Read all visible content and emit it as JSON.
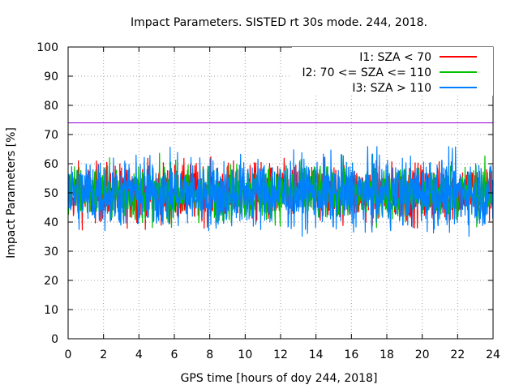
{
  "chart_data": {
    "type": "line",
    "title": "Impact Parameters. SISTED rt 30s mode. 244, 2018.",
    "xlabel": "GPS time [hours of doy 244, 2018]",
    "ylabel": "Impact Parameters [%]",
    "xlim": [
      0,
      24
    ],
    "ylim": [
      0,
      100
    ],
    "xticks": [
      0,
      2,
      4,
      6,
      8,
      10,
      12,
      14,
      16,
      18,
      20,
      22,
      24
    ],
    "yticks": [
      0,
      10,
      20,
      30,
      40,
      50,
      60,
      70,
      80,
      90,
      100
    ],
    "grid": true,
    "legend_position": "top-right",
    "reference_line": {
      "y": 74,
      "color": "#9400d3"
    },
    "series": [
      {
        "name": "I1: SZA < 70",
        "color": "#ff0000",
        "mean": 50,
        "min": 37,
        "max": 65
      },
      {
        "name": "I2: 70 <= SZA <= 110",
        "color": "#00c000",
        "mean": 50,
        "min": 38,
        "max": 65
      },
      {
        "name": "I3: SZA > 110",
        "color": "#0080ff",
        "mean": 50,
        "min": 35,
        "max": 66
      }
    ]
  }
}
